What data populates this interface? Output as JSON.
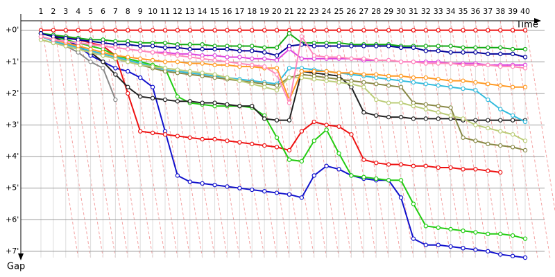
{
  "chart_data": {
    "type": "line",
    "x_label": "Time",
    "y_label": "Gap",
    "grid": true,
    "inverted_y": true,
    "categories": [
      "1",
      "2",
      "3",
      "4",
      "5",
      "6",
      "7",
      "8",
      "9",
      "10",
      "11",
      "12",
      "13",
      "14",
      "15",
      "16",
      "17",
      "18",
      "19",
      "20",
      "21",
      "22",
      "23",
      "24",
      "25",
      "26",
      "27",
      "28",
      "29",
      "30",
      "31",
      "32",
      "33",
      "34",
      "35",
      "36",
      "37",
      "38",
      "39",
      "40"
    ],
    "ylim": [
      -0.3,
      7.2
    ],
    "yticks": [
      {
        "value": 0,
        "label": "+0'"
      },
      {
        "value": 1,
        "label": "+1'"
      },
      {
        "value": 2,
        "label": "+2'"
      },
      {
        "value": 3,
        "label": "+3'"
      },
      {
        "value": 4,
        "label": "+4'"
      },
      {
        "value": 5,
        "label": "+5'"
      },
      {
        "value": 6,
        "label": "+6'"
      },
      {
        "value": 7,
        "label": "+7'"
      }
    ],
    "series": [
      {
        "color": "#ee1111",
        "values": [
          0,
          0,
          0,
          0,
          0,
          0,
          0,
          0,
          0,
          0,
          0,
          0,
          0,
          0,
          0,
          0,
          0,
          0,
          0,
          0,
          0,
          0,
          0,
          0,
          0,
          0,
          0,
          0,
          0,
          0,
          0,
          0,
          0,
          0,
          0,
          0,
          0,
          0,
          0,
          0
        ]
      },
      {
        "color": "#1111cc",
        "values": [
          0.1,
          0.2,
          0.3,
          0.5,
          0.8,
          1.0,
          1.2,
          1.3,
          1.5,
          1.8,
          3.2,
          4.6,
          4.8,
          4.85,
          4.9,
          4.95,
          5.0,
          5.05,
          5.1,
          5.15,
          5.2,
          5.3,
          4.6,
          4.3,
          4.4,
          4.6,
          4.7,
          4.75,
          4.75,
          5.3,
          6.6,
          6.8,
          6.8,
          6.85,
          6.9,
          6.95,
          7.0,
          7.1,
          7.15,
          7.2
        ]
      },
      {
        "color": "#ee1111",
        "values": [
          0.1,
          0.2,
          0.2,
          0.3,
          0.4,
          0.5,
          0.8,
          2.0,
          3.2,
          3.25,
          3.3,
          3.35,
          3.4,
          3.45,
          3.45,
          3.5,
          3.55,
          3.6,
          3.65,
          3.7,
          3.8,
          3.2,
          2.9,
          3.0,
          3.05,
          3.3,
          4.1,
          4.2,
          4.25,
          4.25,
          4.3,
          4.3,
          4.35,
          4.35,
          4.4,
          4.4,
          4.45,
          4.5,
          null,
          null
        ]
      },
      {
        "color": "#22cc11",
        "values": [
          0.1,
          0.2,
          0.3,
          0.4,
          0.5,
          0.6,
          0.8,
          0.9,
          1.0,
          1.1,
          1.2,
          2.1,
          2.3,
          2.35,
          2.4,
          2.4,
          2.4,
          2.45,
          2.7,
          3.4,
          4.1,
          4.15,
          3.5,
          3.15,
          3.9,
          4.6,
          4.65,
          4.7,
          4.75,
          4.75,
          5.5,
          6.2,
          6.25,
          6.3,
          6.35,
          6.4,
          6.45,
          6.45,
          6.5,
          6.6
        ]
      },
      {
        "color": "#222222",
        "values": [
          0.1,
          0.2,
          0.4,
          0.5,
          0.7,
          1.0,
          1.4,
          1.8,
          2.1,
          2.15,
          2.2,
          2.25,
          2.25,
          2.3,
          2.3,
          2.35,
          2.4,
          2.4,
          2.8,
          2.85,
          2.85,
          1.3,
          1.35,
          1.4,
          1.45,
          1.8,
          2.6,
          2.7,
          2.75,
          2.75,
          2.8,
          2.8,
          2.8,
          2.8,
          2.85,
          2.85,
          2.85,
          2.85,
          2.85,
          2.85
        ]
      },
      {
        "color": "#888888",
        "values": [
          0.2,
          0.3,
          0.5,
          0.7,
          1.0,
          1.2,
          2.2,
          null,
          null,
          null,
          null,
          null,
          null,
          null,
          null,
          null,
          null,
          null,
          null,
          null,
          null,
          null,
          null,
          null,
          null,
          null,
          null,
          null,
          null,
          null,
          null,
          null,
          null,
          null,
          null,
          null,
          null,
          null,
          null,
          null
        ]
      },
      {
        "color": "#11aa11",
        "values": [
          0.1,
          0.15,
          0.2,
          0.25,
          0.3,
          0.3,
          0.35,
          0.35,
          0.4,
          0.4,
          0.4,
          0.45,
          0.45,
          0.45,
          0.5,
          0.5,
          0.5,
          0.5,
          0.55,
          0.55,
          0.1,
          0.4,
          0.4,
          0.4,
          0.4,
          0.45,
          0.45,
          0.45,
          0.45,
          0.5,
          0.5,
          0.5,
          0.5,
          0.5,
          0.55,
          0.55,
          0.55,
          0.55,
          0.6,
          0.6
        ]
      },
      {
        "color": "#000099",
        "values": [
          0.1,
          0.2,
          0.25,
          0.3,
          0.35,
          0.4,
          0.45,
          0.45,
          0.5,
          0.5,
          0.55,
          0.55,
          0.6,
          0.6,
          0.6,
          0.6,
          0.65,
          0.65,
          0.7,
          0.8,
          0.5,
          0.45,
          0.5,
          0.5,
          0.5,
          0.5,
          0.5,
          0.5,
          0.5,
          0.55,
          0.55,
          0.65,
          0.65,
          0.7,
          0.7,
          0.7,
          0.75,
          0.75,
          0.75,
          0.85
        ]
      },
      {
        "color": "#dd44dd",
        "values": [
          0.2,
          0.3,
          0.35,
          0.4,
          0.45,
          0.5,
          0.55,
          0.6,
          0.65,
          0.7,
          0.7,
          0.75,
          0.75,
          0.8,
          0.8,
          0.85,
          0.85,
          0.9,
          0.9,
          0.95,
          0.6,
          0.9,
          0.9,
          0.9,
          0.9,
          0.9,
          0.95,
          0.95,
          0.95,
          1.0,
          1.0,
          1.0,
          1.0,
          1.05,
          1.05,
          1.05,
          1.1,
          1.1,
          1.1,
          1.1
        ]
      },
      {
        "color": "#33bbdd",
        "values": [
          0.2,
          0.35,
          0.45,
          0.55,
          0.65,
          0.75,
          0.85,
          0.95,
          1.05,
          1.15,
          1.25,
          1.3,
          1.35,
          1.4,
          1.45,
          1.5,
          1.55,
          1.6,
          1.65,
          1.7,
          1.2,
          1.2,
          1.25,
          1.3,
          1.35,
          1.4,
          1.45,
          1.5,
          1.55,
          1.6,
          1.65,
          1.7,
          1.75,
          1.8,
          1.85,
          1.9,
          2.2,
          2.5,
          2.7,
          2.9
        ]
      },
      {
        "color": "#888844",
        "values": [
          0.3,
          0.4,
          0.5,
          0.6,
          0.7,
          0.8,
          0.9,
          1.0,
          1.1,
          1.2,
          1.3,
          1.35,
          1.4,
          1.45,
          1.5,
          1.55,
          1.6,
          1.65,
          1.7,
          1.75,
          1.5,
          1.4,
          1.45,
          1.5,
          1.55,
          1.6,
          1.65,
          1.7,
          1.75,
          1.8,
          2.3,
          2.35,
          2.4,
          2.45,
          3.4,
          3.5,
          3.6,
          3.65,
          3.7,
          3.8
        ]
      },
      {
        "color": "#bbcc77",
        "values": [
          0.3,
          0.4,
          0.5,
          0.6,
          0.7,
          0.8,
          0.9,
          1.0,
          1.1,
          1.15,
          1.2,
          1.25,
          1.3,
          1.35,
          1.4,
          1.5,
          1.6,
          1.7,
          1.8,
          1.9,
          1.5,
          1.5,
          1.55,
          1.6,
          1.65,
          1.7,
          1.8,
          2.2,
          2.3,
          2.3,
          2.4,
          2.5,
          2.6,
          2.7,
          2.8,
          3.0,
          3.1,
          3.2,
          3.3,
          3.5
        ]
      },
      {
        "color": "#ff9922",
        "values": [
          0.2,
          0.3,
          0.4,
          0.5,
          0.6,
          0.7,
          0.8,
          0.85,
          0.9,
          0.95,
          1.0,
          1.0,
          1.05,
          1.05,
          1.1,
          1.1,
          1.15,
          1.15,
          1.2,
          1.2,
          2.2,
          1.3,
          1.3,
          1.3,
          1.35,
          1.35,
          1.4,
          1.4,
          1.45,
          1.45,
          1.5,
          1.5,
          1.55,
          1.6,
          1.6,
          1.65,
          1.7,
          1.75,
          1.8,
          1.8
        ]
      },
      {
        "color": "#ff88bb",
        "values": [
          0.2,
          0.3,
          0.35,
          0.4,
          0.45,
          0.5,
          0.55,
          0.6,
          0.65,
          0.7,
          0.75,
          0.8,
          0.85,
          0.9,
          0.95,
          1.0,
          1.05,
          1.1,
          1.15,
          1.4,
          2.3,
          0.2,
          0.8,
          0.85,
          0.85,
          0.9,
          0.9,
          0.95,
          0.95,
          1.0,
          1.0,
          1.05,
          1.05,
          1.05,
          1.1,
          1.1,
          1.1,
          1.15,
          1.15,
          1.2
        ]
      }
    ]
  }
}
